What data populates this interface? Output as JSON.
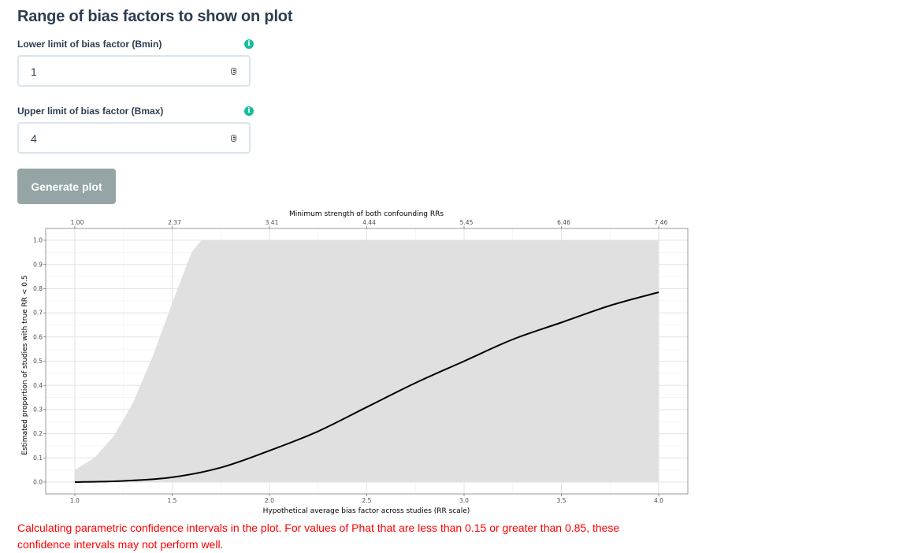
{
  "section_title": "Range of bias factors to show on plot",
  "lower": {
    "label": "Lower limit of bias factor (Bmin)",
    "value": "1"
  },
  "upper": {
    "label": "Upper limit of bias factor (Bmax)",
    "value": "4"
  },
  "info_icon_glyph": "i",
  "generate_button": "Generate plot",
  "warning_text": "Calculating parametric confidence intervals in the plot. For values of Phat that are less than 0.15 or greater than 0.85, these confidence intervals may not perform well.",
  "colors": {
    "accent": "#18bc9c",
    "button": "#95a5a6",
    "warning": "#ff0000",
    "band": "#e0e0e0"
  },
  "chart_data": {
    "type": "line",
    "title": "",
    "top_axis_label": "Minimum strength of both confounding RRs",
    "top_ticks": [
      "1.00",
      "2.37",
      "3.41",
      "4.44",
      "5.45",
      "6.46",
      "7.46"
    ],
    "xlabel": "Hypothetical average bias factor across studies (RR scale)",
    "ylabel": "Estimated proportion of studies with true RR < 0.5",
    "xlim": [
      1.0,
      4.0
    ],
    "ylim": [
      0.0,
      1.0
    ],
    "x_ticks": [
      "1.0",
      "1.5",
      "2.0",
      "2.5",
      "3.0",
      "3.5",
      "4.0"
    ],
    "y_ticks": [
      "0.0",
      "0.1",
      "0.2",
      "0.3",
      "0.4",
      "0.5",
      "0.6",
      "0.7",
      "0.8",
      "0.9",
      "1.0"
    ],
    "grid": true,
    "series": [
      {
        "x": [
          1.0,
          1.25,
          1.5,
          1.75,
          2.0,
          2.25,
          2.5,
          2.75,
          3.0,
          3.25,
          3.5,
          3.75,
          4.0
        ],
        "values": [
          0.0,
          0.005,
          0.02,
          0.06,
          0.13,
          0.21,
          0.31,
          0.41,
          0.5,
          0.59,
          0.66,
          0.73,
          0.785
        ]
      }
    ],
    "confidence_band": {
      "x": [
        1.0,
        1.1,
        1.2,
        1.3,
        1.4,
        1.5,
        1.6,
        1.65,
        1.7,
        2.0,
        2.5,
        3.0,
        3.5,
        4.0
      ],
      "lower": [
        0.0,
        0.0,
        0.0,
        0.0,
        0.0,
        0.0,
        0.0,
        0.0,
        0.0,
        0.0,
        0.0,
        0.0,
        0.0,
        0.0
      ],
      "upper": [
        0.05,
        0.1,
        0.19,
        0.33,
        0.52,
        0.74,
        0.95,
        1.0,
        1.0,
        1.0,
        1.0,
        1.0,
        1.0,
        1.0
      ]
    }
  }
}
